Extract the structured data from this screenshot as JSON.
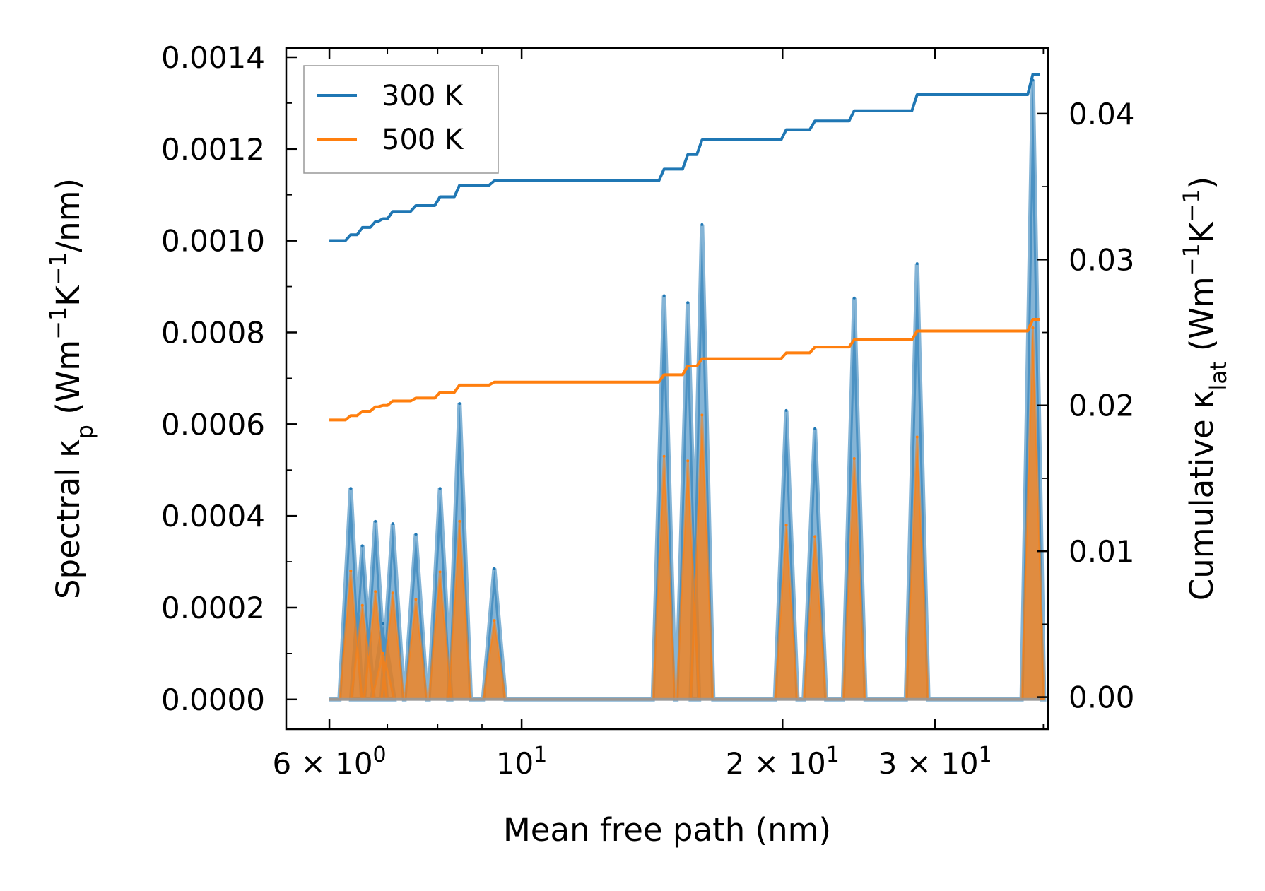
{
  "chart_data": {
    "type": "line",
    "title": "",
    "xlabel": "Mean free path (nm)",
    "ylabel_left": {
      "main": "Spectral κ",
      "sub": "p",
      "units_prefix": " (Wm",
      "sup1": "−1",
      "mid": "K",
      "sup2": "−1",
      "units_suffix": "/nm)"
    },
    "ylabel_right": {
      "main": "Cumulative κ",
      "sub": "lat",
      "units_prefix": " (Wm",
      "sup1": "−1",
      "mid": "K",
      "sup2": "−1",
      "units_suffix": ")"
    },
    "xscale": "log",
    "xlim": [
      5.35,
      40.5
    ],
    "ylim_left": [
      -6.5e-05,
      0.00142
    ],
    "ylim_right": [
      -0.0022,
      0.0445
    ],
    "x_ticks": [
      {
        "value": 6,
        "base": "6 × 10",
        "exp": "0"
      },
      {
        "value": 10,
        "base": "10",
        "exp": "1"
      },
      {
        "value": 20,
        "base": "2 × 10",
        "exp": "1"
      },
      {
        "value": 30,
        "base": "3 × 10",
        "exp": "1"
      }
    ],
    "y_ticks_left": [
      "0.0000",
      "0.0002",
      "0.0004",
      "0.0006",
      "0.0008",
      "0.0010",
      "0.0012",
      "0.0014"
    ],
    "y_ticks_left_values": [
      0,
      0.0002,
      0.0004,
      0.0006,
      0.0008,
      0.001,
      0.0012,
      0.0014
    ],
    "y_ticks_right": [
      "0.00",
      "0.01",
      "0.02",
      "0.03",
      "0.04"
    ],
    "y_ticks_right_values": [
      0,
      0.01,
      0.02,
      0.03,
      0.04
    ],
    "spectral_peaks_mfp": [
      6.35,
      6.55,
      6.78,
      6.92,
      7.1,
      7.55,
      8.05,
      8.48,
      9.3,
      14.6,
      15.55,
      16.15,
      20.2,
      21.8,
      24.2,
      28.6,
      38.9
    ],
    "series": [
      {
        "name": "300 K",
        "color": "#1f77b4",
        "spectral_values": [
          0.00046,
          0.000335,
          0.000388,
          0.000165,
          0.000383,
          0.00036,
          0.00046,
          0.000645,
          0.000285,
          0.00088,
          0.000865,
          0.001035,
          0.00063,
          0.00059,
          0.000875,
          0.00095,
          0.00135
        ],
        "cumulative_x": [
          6.0,
          6.35,
          6.55,
          6.78,
          6.92,
          7.1,
          7.55,
          8.05,
          8.48,
          9.3,
          14.6,
          15.55,
          16.15,
          20.2,
          21.8,
          24.2,
          28.6,
          38.9,
          39.6
        ],
        "cumulative_y": [
          0.0313,
          0.0317,
          0.0322,
          0.0326,
          0.0328,
          0.0333,
          0.0337,
          0.0343,
          0.0351,
          0.0354,
          0.0362,
          0.0372,
          0.0382,
          0.0389,
          0.0395,
          0.0402,
          0.0413,
          0.0427,
          0.0427
        ]
      },
      {
        "name": "500 K",
        "color": "#ff7f0e",
        "spectral_values": [
          0.00028,
          0.000205,
          0.000235,
          0.0001,
          0.000232,
          0.000218,
          0.000278,
          0.000388,
          0.000172,
          0.00053,
          0.00052,
          0.00062,
          0.00038,
          0.000355,
          0.000525,
          0.000572,
          0.00081
        ],
        "cumulative_x": [
          6.0,
          6.35,
          6.55,
          6.78,
          6.92,
          7.1,
          7.55,
          8.05,
          8.48,
          9.3,
          14.6,
          15.55,
          16.15,
          20.2,
          21.8,
          24.2,
          28.6,
          38.9,
          39.6
        ],
        "cumulative_y": [
          0.019,
          0.0193,
          0.0196,
          0.0199,
          0.02,
          0.0203,
          0.0205,
          0.0209,
          0.0214,
          0.0216,
          0.0221,
          0.0227,
          0.0232,
          0.0236,
          0.024,
          0.0245,
          0.0251,
          0.0259,
          0.0259
        ]
      }
    ],
    "legend": {
      "position": "top-left",
      "entries": [
        "300 K",
        "500 K"
      ]
    },
    "grid": false
  }
}
